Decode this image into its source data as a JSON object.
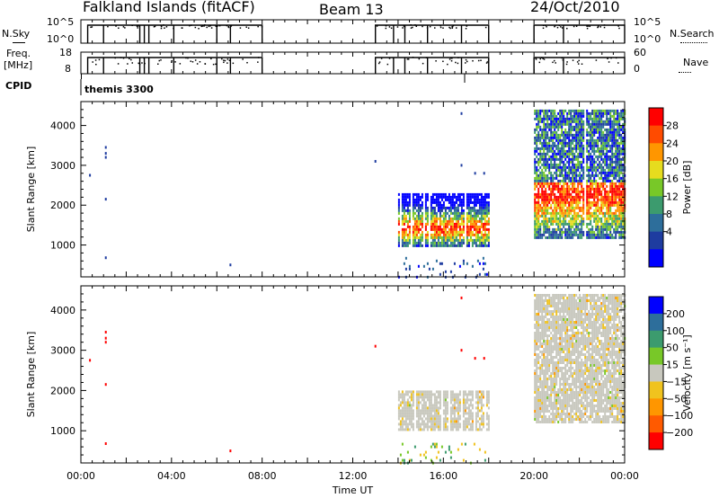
{
  "header": {
    "station": "Falkland Islands (fitACF)",
    "beam": "Beam 13",
    "date": "24/Oct/2010"
  },
  "side_labels": {
    "nsky": "N.Sky",
    "freq_line1": "Freq.",
    "freq_line2": "[MHz]",
    "cpid": "CPID",
    "nsearch": "N.Search",
    "nave": "Nave"
  },
  "cpid_text": "themis 3300",
  "colors": {
    "power_scale": [
      "#0000ff",
      "#1e3ca0",
      "#2d6e9b",
      "#3c9b6e",
      "#78c828",
      "#e6dc1e",
      "#ff9600",
      "#ff4b00",
      "#ff0000"
    ],
    "velocity_scale": [
      "#ff0000",
      "#ff5a00",
      "#ff9600",
      "#f0c31e",
      "#c8c8be",
      "#78c828",
      "#3c9b6e",
      "#2d6e9b",
      "#0000ff"
    ]
  },
  "chart_data": [
    {
      "id": "nsky",
      "type": "line",
      "ylim_labels": [
        "10^5",
        "10^0"
      ],
      "right_ylim_labels": [
        "10^5",
        "10^0"
      ],
      "xlim": [
        0,
        24
      ],
      "segments": [
        [
          0.3,
          8.0
        ],
        [
          13.0,
          18.0
        ],
        [
          20.0,
          24.0
        ]
      ],
      "drops": [
        1.0,
        2.6,
        2.8,
        3.0,
        4.1,
        6.0,
        6.6,
        13.8,
        14.3,
        15.3,
        16.8,
        21.3
      ]
    },
    {
      "id": "freq",
      "type": "line",
      "ylim_labels": [
        "18",
        "8"
      ],
      "right_ylim_labels": [
        "60",
        "0"
      ],
      "xlim": [
        0,
        24
      ],
      "segments": [
        [
          0.3,
          8.0
        ],
        [
          13.0,
          18.0
        ],
        [
          20.0,
          24.0
        ]
      ],
      "drops": [
        1.0,
        2.6,
        2.8,
        3.0,
        4.1,
        6.0,
        6.6,
        13.8,
        14.3,
        15.3,
        16.8,
        21.3
      ]
    },
    {
      "id": "power",
      "type": "heatmap",
      "ylabel": "Slant Range [km]",
      "yticks": [
        1000,
        2000,
        3000,
        4000
      ],
      "ylim": [
        200,
        4600
      ],
      "xlim": [
        0,
        24
      ],
      "colorbar": {
        "label": "Power [dB]",
        "ticks": [
          "28",
          "24",
          "20",
          "16",
          "12",
          "8",
          "4"
        ]
      },
      "regions": [
        {
          "x": [
            14.0,
            18.0
          ],
          "y": [
            1000,
            2300
          ],
          "kind": "band"
        },
        {
          "x": [
            20.0,
            24.0
          ],
          "y": [
            1200,
            4400
          ],
          "kind": "band"
        },
        {
          "x": [
            14.0,
            18.0
          ],
          "y": [
            200,
            700
          ],
          "kind": "sparse"
        }
      ],
      "isolated_points": [
        [
          0.4,
          2750
        ],
        [
          1.1,
          3450
        ],
        [
          1.1,
          3300
        ],
        [
          1.1,
          3200
        ],
        [
          1.1,
          2150
        ],
        [
          1.1,
          680
        ],
        [
          6.6,
          500
        ],
        [
          13.0,
          3100
        ],
        [
          16.8,
          4300
        ],
        [
          16.8,
          3000
        ],
        [
          17.4,
          2800
        ],
        [
          17.8,
          2800
        ]
      ]
    },
    {
      "id": "velocity",
      "type": "heatmap",
      "ylabel": "Slant Range [km]",
      "yticks": [
        1000,
        2000,
        3000,
        4000
      ],
      "ylim": [
        200,
        4600
      ],
      "xlim": [
        0,
        24
      ],
      "xticks": [
        "00:00",
        "04:00",
        "08:00",
        "12:00",
        "16:00",
        "20:00",
        "00:00"
      ],
      "xlabel": "Time UT",
      "colorbar": {
        "label": "Velocity [m s⁻¹]",
        "ticks": [
          "200",
          "100",
          "50",
          "15",
          "−15",
          "−50",
          "−100",
          "−200"
        ]
      },
      "regions": [
        {
          "x": [
            14.0,
            18.0
          ],
          "y": [
            1000,
            2000
          ],
          "kind": "band"
        },
        {
          "x": [
            20.0,
            24.0
          ],
          "y": [
            1200,
            4400
          ],
          "kind": "band"
        },
        {
          "x": [
            14.0,
            18.0
          ],
          "y": [
            200,
            700
          ],
          "kind": "sparse"
        }
      ],
      "isolated_points": [
        [
          0.4,
          2750
        ],
        [
          1.1,
          3450
        ],
        [
          1.1,
          3300
        ],
        [
          1.1,
          3200
        ],
        [
          1.1,
          2150
        ],
        [
          1.1,
          680
        ],
        [
          6.6,
          500
        ],
        [
          13.0,
          3100
        ],
        [
          16.8,
          4300
        ],
        [
          16.8,
          3000
        ],
        [
          17.4,
          2800
        ],
        [
          17.8,
          2800
        ]
      ]
    }
  ]
}
